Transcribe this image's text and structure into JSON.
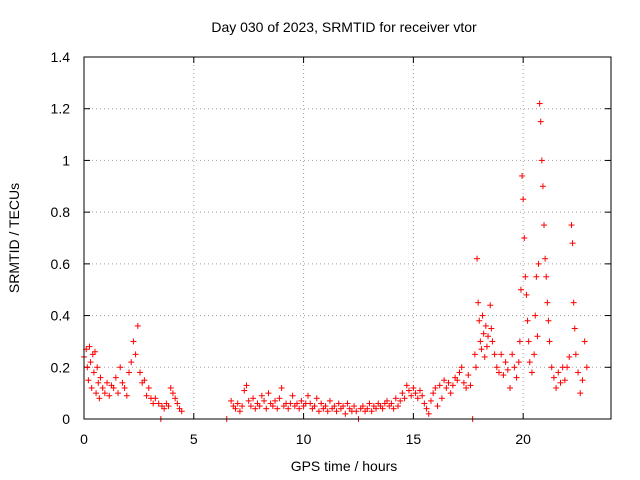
{
  "chart_data": {
    "type": "scatter",
    "title": "Day 030 of 2023, SRMTID for receiver vtor",
    "xlabel": "GPS time / hours",
    "ylabel": "SRMTID / TECUs",
    "xlim": [
      0,
      24
    ],
    "ylim": [
      0,
      1.4
    ],
    "x_ticks": [
      0,
      5,
      10,
      15,
      20
    ],
    "x_tick_labels": [
      "0",
      "5",
      "10",
      "15",
      "20"
    ],
    "y_ticks": [
      0,
      0.2,
      0.4,
      0.6,
      0.8,
      1.0,
      1.2,
      1.4
    ],
    "y_tick_labels": [
      "0",
      "0.2",
      "0.4",
      "0.6",
      "0.8",
      "1",
      "1.2",
      "1.4"
    ],
    "grid": true,
    "marker": "plus",
    "series": [
      {
        "name": "SRMTID",
        "color": "#ff0000",
        "points": [
          [
            0.0,
            0.24
          ],
          [
            0.1,
            0.27
          ],
          [
            0.15,
            0.2
          ],
          [
            0.2,
            0.15
          ],
          [
            0.25,
            0.28
          ],
          [
            0.3,
            0.22
          ],
          [
            0.35,
            0.12
          ],
          [
            0.4,
            0.25
          ],
          [
            0.45,
            0.18
          ],
          [
            0.5,
            0.26
          ],
          [
            0.55,
            0.1
          ],
          [
            0.6,
            0.2
          ],
          [
            0.65,
            0.14
          ],
          [
            0.7,
            0.08
          ],
          [
            0.75,
            0.16
          ],
          [
            0.85,
            0.12
          ],
          [
            0.95,
            0.1
          ],
          [
            1.05,
            0.14
          ],
          [
            1.15,
            0.09
          ],
          [
            1.25,
            0.13
          ],
          [
            1.35,
            0.12
          ],
          [
            1.45,
            0.16
          ],
          [
            1.55,
            0.1
          ],
          [
            1.65,
            0.2
          ],
          [
            1.75,
            0.14
          ],
          [
            1.85,
            0.12
          ],
          [
            1.95,
            0.09
          ],
          [
            2.05,
            0.18
          ],
          [
            2.15,
            0.22
          ],
          [
            2.25,
            0.3
          ],
          [
            2.35,
            0.25
          ],
          [
            2.45,
            0.36
          ],
          [
            2.55,
            0.18
          ],
          [
            2.65,
            0.14
          ],
          [
            2.75,
            0.15
          ],
          [
            2.85,
            0.09
          ],
          [
            2.95,
            0.12
          ],
          [
            3.05,
            0.08
          ],
          [
            3.15,
            0.06
          ],
          [
            3.25,
            0.08
          ],
          [
            3.4,
            0.06
          ],
          [
            3.5,
            0.0
          ],
          [
            3.55,
            0.05
          ],
          [
            3.65,
            0.04
          ],
          [
            3.75,
            0.06
          ],
          [
            3.85,
            0.05
          ],
          [
            3.95,
            0.12
          ],
          [
            4.05,
            0.1
          ],
          [
            4.15,
            0.08
          ],
          [
            4.25,
            0.06
          ],
          [
            4.35,
            0.04
          ],
          [
            4.45,
            0.03
          ],
          [
            6.5,
            0.0
          ],
          [
            6.7,
            0.07
          ],
          [
            6.8,
            0.05
          ],
          [
            6.9,
            0.04
          ],
          [
            7.0,
            0.06
          ],
          [
            7.1,
            0.03
          ],
          [
            7.2,
            0.05
          ],
          [
            7.3,
            0.11
          ],
          [
            7.4,
            0.13
          ],
          [
            7.5,
            0.07
          ],
          [
            7.6,
            0.05
          ],
          [
            7.7,
            0.08
          ],
          [
            7.8,
            0.04
          ],
          [
            7.9,
            0.06
          ],
          [
            8.0,
            0.05
          ],
          [
            8.1,
            0.09
          ],
          [
            8.2,
            0.07
          ],
          [
            8.3,
            0.04
          ],
          [
            8.4,
            0.1
          ],
          [
            8.5,
            0.06
          ],
          [
            8.6,
            0.05
          ],
          [
            8.7,
            0.07
          ],
          [
            8.8,
            0.04
          ],
          [
            8.9,
            0.08
          ],
          [
            9.0,
            0.12
          ],
          [
            9.1,
            0.05
          ],
          [
            9.2,
            0.06
          ],
          [
            9.3,
            0.04
          ],
          [
            9.4,
            0.06
          ],
          [
            9.5,
            0.09
          ],
          [
            9.6,
            0.05
          ],
          [
            9.7,
            0.06
          ],
          [
            9.8,
            0.04
          ],
          [
            9.9,
            0.07
          ],
          [
            10.0,
            0.05
          ],
          [
            10.1,
            0.06
          ],
          [
            10.2,
            0.09
          ],
          [
            10.3,
            0.06
          ],
          [
            10.4,
            0.04
          ],
          [
            10.5,
            0.05
          ],
          [
            10.6,
            0.08
          ],
          [
            10.7,
            0.03
          ],
          [
            10.8,
            0.06
          ],
          [
            10.9,
            0.04
          ],
          [
            11.0,
            0.05
          ],
          [
            11.1,
            0.03
          ],
          [
            11.2,
            0.07
          ],
          [
            11.3,
            0.04
          ],
          [
            11.4,
            0.05
          ],
          [
            11.5,
            0.03
          ],
          [
            11.6,
            0.06
          ],
          [
            11.7,
            0.04
          ],
          [
            11.8,
            0.05
          ],
          [
            11.9,
            0.02
          ],
          [
            12.0,
            0.06
          ],
          [
            12.1,
            0.04
          ],
          [
            12.2,
            0.03
          ],
          [
            12.3,
            0.05
          ],
          [
            12.4,
            0.03
          ],
          [
            12.5,
            0.0
          ],
          [
            12.6,
            0.04
          ],
          [
            12.7,
            0.05
          ],
          [
            12.8,
            0.03
          ],
          [
            12.9,
            0.04
          ],
          [
            13.0,
            0.06
          ],
          [
            13.1,
            0.03
          ],
          [
            13.2,
            0.05
          ],
          [
            13.3,
            0.04
          ],
          [
            13.4,
            0.06
          ],
          [
            13.5,
            0.05
          ],
          [
            13.6,
            0.04
          ],
          [
            13.7,
            0.06
          ],
          [
            13.8,
            0.07
          ],
          [
            13.9,
            0.05
          ],
          [
            14.0,
            0.06
          ],
          [
            14.1,
            0.04
          ],
          [
            14.2,
            0.08
          ],
          [
            14.3,
            0.05
          ],
          [
            14.4,
            0.07
          ],
          [
            14.5,
            0.1
          ],
          [
            14.6,
            0.08
          ],
          [
            14.7,
            0.13
          ],
          [
            14.8,
            0.11
          ],
          [
            14.9,
            0.09
          ],
          [
            15.0,
            0.12
          ],
          [
            15.1,
            0.1
          ],
          [
            15.2,
            0.08
          ],
          [
            15.3,
            0.11
          ],
          [
            15.4,
            0.09
          ],
          [
            15.5,
            0.06
          ],
          [
            15.6,
            0.04
          ],
          [
            15.7,
            0.02
          ],
          [
            15.8,
            0.07
          ],
          [
            15.9,
            0.1
          ],
          [
            16.0,
            0.12
          ],
          [
            16.1,
            0.05
          ],
          [
            16.2,
            0.13
          ],
          [
            16.3,
            0.08
          ],
          [
            16.4,
            0.15
          ],
          [
            16.5,
            0.12
          ],
          [
            16.6,
            0.14
          ],
          [
            16.7,
            0.1
          ],
          [
            16.8,
            0.13
          ],
          [
            16.9,
            0.16
          ],
          [
            17.0,
            0.15
          ],
          [
            17.1,
            0.18
          ],
          [
            17.2,
            0.2
          ],
          [
            17.3,
            0.14
          ],
          [
            17.4,
            0.12
          ],
          [
            17.5,
            0.17
          ],
          [
            17.6,
            0.13
          ],
          [
            17.7,
            0.0
          ],
          [
            17.8,
            0.25
          ],
          [
            17.85,
            0.2
          ],
          [
            17.9,
            0.62
          ],
          [
            17.95,
            0.45
          ],
          [
            18.0,
            0.38
          ],
          [
            18.05,
            0.3
          ],
          [
            18.1,
            0.27
          ],
          [
            18.15,
            0.4
          ],
          [
            18.2,
            0.33
          ],
          [
            18.25,
            0.24
          ],
          [
            18.3,
            0.36
          ],
          [
            18.35,
            0.28
          ],
          [
            18.4,
            0.32
          ],
          [
            18.5,
            0.44
          ],
          [
            18.55,
            0.35
          ],
          [
            18.6,
            0.3
          ],
          [
            18.7,
            0.25
          ],
          [
            18.8,
            0.2
          ],
          [
            18.9,
            0.18
          ],
          [
            19.0,
            0.25
          ],
          [
            19.1,
            0.17
          ],
          [
            19.2,
            0.22
          ],
          [
            19.3,
            0.19
          ],
          [
            19.4,
            0.12
          ],
          [
            19.5,
            0.25
          ],
          [
            19.6,
            0.2
          ],
          [
            19.7,
            0.16
          ],
          [
            19.8,
            0.22
          ],
          [
            19.85,
            0.3
          ],
          [
            19.9,
            0.5
          ],
          [
            19.95,
            0.94
          ],
          [
            20.0,
            0.85
          ],
          [
            20.05,
            0.7
          ],
          [
            20.1,
            0.55
          ],
          [
            20.15,
            0.48
          ],
          [
            20.2,
            0.38
          ],
          [
            20.25,
            0.3
          ],
          [
            20.3,
            0.22
          ],
          [
            20.4,
            0.18
          ],
          [
            20.5,
            0.25
          ],
          [
            20.55,
            0.4
          ],
          [
            20.6,
            0.55
          ],
          [
            20.65,
            0.32
          ],
          [
            20.7,
            0.6
          ],
          [
            20.75,
            1.22
          ],
          [
            20.8,
            1.15
          ],
          [
            20.85,
            1.0
          ],
          [
            20.9,
            0.9
          ],
          [
            20.95,
            0.75
          ],
          [
            21.0,
            0.62
          ],
          [
            21.05,
            0.55
          ],
          [
            21.1,
            0.45
          ],
          [
            21.15,
            0.38
          ],
          [
            21.2,
            0.3
          ],
          [
            21.3,
            0.2
          ],
          [
            21.4,
            0.16
          ],
          [
            21.5,
            0.12
          ],
          [
            21.6,
            0.18
          ],
          [
            21.7,
            0.14
          ],
          [
            21.8,
            0.2
          ],
          [
            21.9,
            0.15
          ],
          [
            22.0,
            0.2
          ],
          [
            22.1,
            0.24
          ],
          [
            22.2,
            0.75
          ],
          [
            22.25,
            0.68
          ],
          [
            22.3,
            0.45
          ],
          [
            22.35,
            0.35
          ],
          [
            22.4,
            0.25
          ],
          [
            22.5,
            0.18
          ],
          [
            22.6,
            0.1
          ],
          [
            22.7,
            0.15
          ],
          [
            22.8,
            0.3
          ],
          [
            22.9,
            0.2
          ]
        ]
      }
    ]
  }
}
